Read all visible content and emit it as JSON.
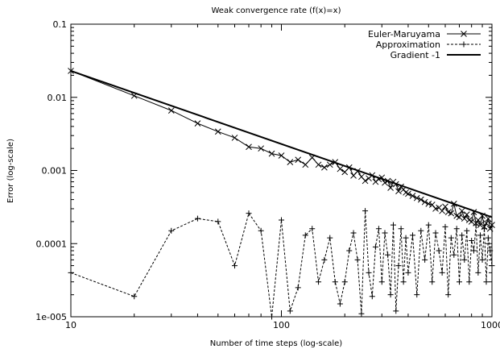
{
  "chart_data": {
    "type": "line",
    "title": "Weak convergence rate (f(x)=x)",
    "xlabel": "Number of time steps (log-scale)",
    "ylabel": "Error (log-scale)",
    "xscale": "log",
    "yscale": "log",
    "xlim": [
      10,
      1000
    ],
    "ylim": [
      1e-05,
      0.1
    ],
    "xticks": [
      "10",
      "100",
      "1000"
    ],
    "yticks": [
      "1e-005",
      "0.0001",
      "0.001",
      "0.01",
      "0.1"
    ],
    "legend_position": "top-right",
    "grid": false,
    "series": [
      {
        "name": "Euler-Maruyama",
        "style": "solid-x",
        "x": [
          10,
          20,
          30,
          40,
          50,
          60,
          70,
          80,
          90,
          100,
          110,
          120,
          130,
          140,
          150,
          160,
          170,
          180,
          190,
          200,
          210,
          220,
          230,
          240,
          250,
          260,
          270,
          280,
          290,
          300,
          310,
          320,
          330,
          340,
          350,
          360,
          370,
          380,
          390,
          400,
          420,
          440,
          460,
          480,
          500,
          520,
          540,
          560,
          580,
          600,
          620,
          640,
          660,
          680,
          700,
          720,
          740,
          760,
          780,
          800,
          820,
          840,
          860,
          880,
          900,
          920,
          940,
          960,
          980,
          1000
        ],
        "y": [
          0.023,
          0.0105,
          0.0066,
          0.0044,
          0.0034,
          0.0028,
          0.0021,
          0.002,
          0.0017,
          0.0016,
          0.0013,
          0.0014,
          0.0012,
          0.0015,
          0.0012,
          0.0011,
          0.0012,
          0.0013,
          0.00105,
          0.00095,
          0.0011,
          0.00085,
          0.00098,
          0.00082,
          0.00072,
          0.00078,
          0.00086,
          0.0007,
          0.00076,
          0.0008,
          0.00068,
          0.00072,
          0.00058,
          0.0007,
          0.00065,
          0.00052,
          0.0006,
          0.00055,
          0.0005,
          0.00048,
          0.00045,
          0.00042,
          0.0004,
          0.00037,
          0.00035,
          0.00034,
          0.0003,
          0.00031,
          0.00028,
          0.00032,
          0.00027,
          0.00026,
          0.00035,
          0.00024,
          0.00023,
          0.00028,
          0.00022,
          0.00025,
          0.00021,
          0.0002,
          0.00027,
          0.00019,
          0.00021,
          0.00018,
          0.00024,
          0.00017,
          0.00019,
          0.00022,
          0.00016,
          0.00018
        ]
      },
      {
        "name": "Approximation",
        "style": "dashed-plus",
        "x": [
          10,
          20,
          30,
          40,
          50,
          60,
          70,
          80,
          90,
          100,
          110,
          120,
          130,
          140,
          150,
          160,
          170,
          180,
          190,
          200,
          210,
          220,
          230,
          240,
          250,
          260,
          270,
          280,
          290,
          300,
          310,
          320,
          330,
          340,
          350,
          360,
          370,
          380,
          390,
          400,
          420,
          440,
          460,
          480,
          500,
          520,
          540,
          560,
          580,
          600,
          620,
          640,
          660,
          680,
          700,
          720,
          740,
          760,
          780,
          800,
          820,
          840,
          860,
          880,
          900,
          920,
          940,
          960,
          980,
          1000
        ],
        "y": [
          4e-05,
          1.9e-05,
          0.00015,
          0.00022,
          0.0002,
          5e-05,
          0.00026,
          0.00015,
          1e-05,
          0.00021,
          1.2e-05,
          2.5e-05,
          0.00013,
          0.00016,
          3e-05,
          6e-05,
          0.00012,
          3e-05,
          1.5e-05,
          3e-05,
          8e-05,
          0.00014,
          6e-05,
          1.1e-05,
          0.00028,
          4e-05,
          1.9e-05,
          9e-05,
          0.00016,
          3e-05,
          0.00014,
          7e-05,
          2e-05,
          0.00018,
          1.2e-05,
          5e-05,
          0.00016,
          3e-05,
          0.00012,
          4e-05,
          0.00013,
          2e-05,
          0.00015,
          6e-05,
          0.00018,
          3e-05,
          0.00014,
          8e-05,
          4e-05,
          0.00017,
          2e-05,
          0.00012,
          7e-05,
          0.00016,
          3e-05,
          0.00013,
          6e-05,
          0.00015,
          3e-05,
          0.00011,
          8e-05,
          0.00018,
          4e-05,
          0.00013,
          6e-05,
          0.00016,
          3e-05,
          0.00012,
          8e-05,
          5e-05
        ]
      },
      {
        "name": "Gradient  -1",
        "style": "solid-thick",
        "x": [
          10,
          1000
        ],
        "y": [
          0.023,
          0.00023
        ]
      }
    ]
  }
}
